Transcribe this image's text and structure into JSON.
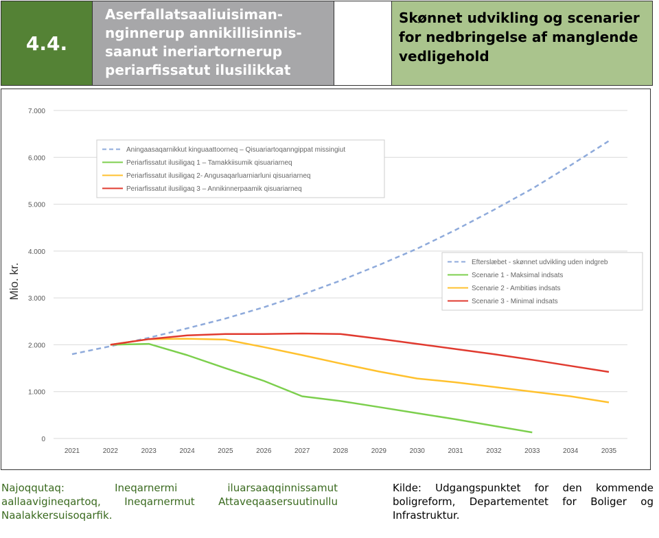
{
  "header": {
    "number": "4.4.",
    "title_kl": "Aserfallatsaaliuisiman-nginnerup annikillisinnis-saanut ineriartornerup periarfissatut ilusilikkat",
    "title_da": "Skønnet udvikling og scenarier for nedbringelse af manglende vedligehold"
  },
  "chart_data": {
    "type": "line",
    "ylabel": "Mio. kr.",
    "xlabel": "",
    "x": [
      2021,
      2022,
      2023,
      2024,
      2025,
      2026,
      2027,
      2028,
      2029,
      2030,
      2031,
      2032,
      2033,
      2034,
      2035
    ],
    "x_tick_labels": [
      "2021",
      "2022",
      "2023",
      "2024",
      "2025",
      "2026",
      "2027",
      "2028",
      "2029",
      "2030",
      "2031",
      "2032",
      "2033",
      "2034",
      "2035"
    ],
    "ylim": [
      0,
      7000
    ],
    "y_ticks": [
      0,
      1000,
      2000,
      3000,
      4000,
      5000,
      6000,
      7000
    ],
    "y_tick_labels": [
      "0",
      "1.000",
      "2.000",
      "3.000",
      "4.000",
      "5.000",
      "6.000",
      "7.000"
    ],
    "grid": "horizontal",
    "series": [
      {
        "name_kl": "Aningaasaqarnikkut kinguaattoorneq – Qisuariartoqanngippat missingiut",
        "name_da": "Efterslæbet - skønnet udvikling uden indgreb",
        "color": "#8eaadb",
        "dashed": true,
        "x": [
          2021,
          2022,
          2023,
          2024,
          2025,
          2026,
          2027,
          2028,
          2029,
          2030,
          2031,
          2032,
          2033,
          2034,
          2035
        ],
        "values": [
          1800,
          1970,
          2150,
          2350,
          2560,
          2800,
          3070,
          3370,
          3700,
          4050,
          4450,
          4880,
          5330,
          5830,
          6350
        ]
      },
      {
        "name_kl": "Periarfissatut ilusiligaq 1 – Tamakkiisumik qisuariarneq",
        "name_da": "Scenarie 1 - Maksimal indsats",
        "color": "#7ccf4d",
        "dashed": false,
        "x": [
          2022,
          2023,
          2024,
          2025,
          2026,
          2027,
          2028,
          2029,
          2030,
          2031,
          2032,
          2033
        ],
        "values": [
          2000,
          2020,
          1780,
          1500,
          1230,
          900,
          800,
          670,
          540,
          410,
          270,
          130
        ]
      },
      {
        "name_kl": "Periarfissatut ilusiligaq 2- Angusaqarluarniarluni qisuariarneq",
        "name_da": "Scenarie 2 - Ambitiøs indsats",
        "color": "#ffc12e",
        "dashed": false,
        "x": [
          2022,
          2023,
          2024,
          2025,
          2026,
          2027,
          2028,
          2029,
          2030,
          2031,
          2032,
          2033,
          2034,
          2035
        ],
        "values": [
          2000,
          2120,
          2130,
          2110,
          1950,
          1780,
          1600,
          1430,
          1280,
          1200,
          1100,
          1000,
          900,
          770
        ]
      },
      {
        "name_kl": "Periarfissatut ilusiligaq 3 – Annikinnerpaamik qisuariarneq",
        "name_da": "Scenarie 3 - Minimal indsats",
        "color": "#e03a2f",
        "dashed": false,
        "x": [
          2022,
          2023,
          2024,
          2025,
          2026,
          2027,
          2028,
          2029,
          2030,
          2031,
          2032,
          2033,
          2034,
          2035
        ],
        "values": [
          2000,
          2120,
          2200,
          2230,
          2230,
          2240,
          2230,
          2130,
          2020,
          1910,
          1800,
          1680,
          1550,
          1420
        ]
      }
    ],
    "legend_placement": [
      "top-left (Greenlandic)",
      "center-right (Danish)"
    ]
  },
  "footer": {
    "source_kl": "Najoqqutaq: Ineqarnermi iluarsaaqqinnissamut aallaavigineqartoq, Ineqarnermut Attaveqaasersuutinullu Naalakkersuisoqarfik.",
    "source_da": "Kilde: Udgangspunktet for den kommende boligreform, Departementet for Boliger og Infrastruktur."
  }
}
